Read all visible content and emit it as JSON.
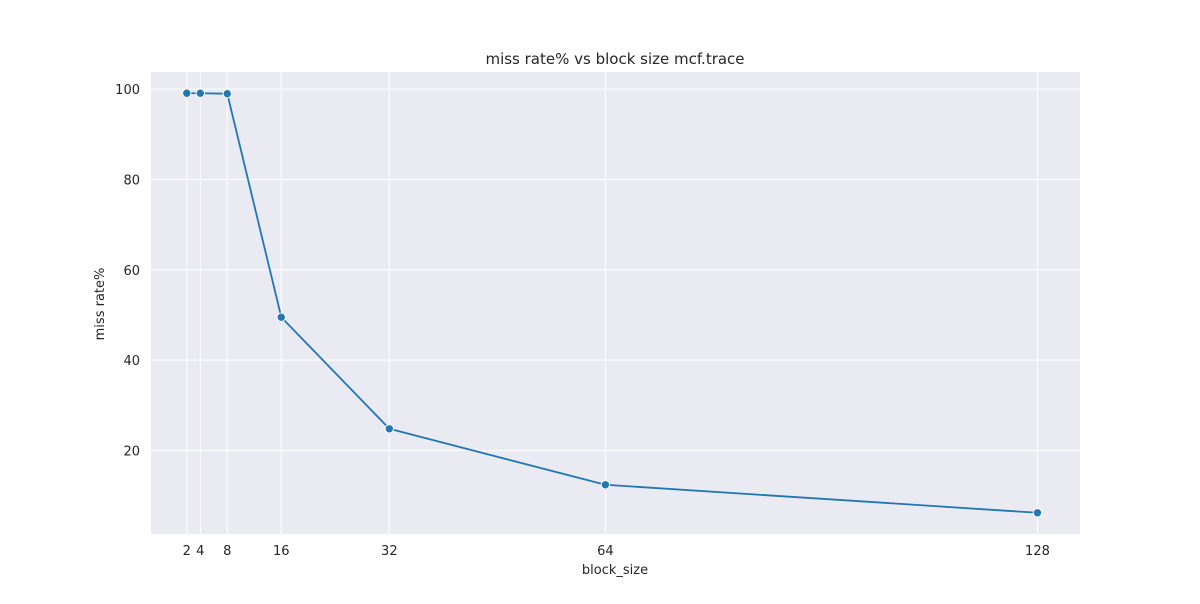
{
  "chart_data": {
    "type": "line",
    "title": "miss rate% vs block size mcf.trace",
    "xlabel": "block_size",
    "ylabel": "miss rate%",
    "x": [
      2,
      4,
      8,
      16,
      32,
      64,
      128
    ],
    "series": [
      {
        "name": "",
        "values": [
          99.1,
          99.1,
          99.0,
          49.5,
          24.8,
          12.4,
          6.2
        ],
        "color": "#1f77b4",
        "marker": "circle"
      }
    ],
    "x_ticks": [
      2,
      4,
      8,
      16,
      32,
      64,
      128
    ],
    "y_ticks": [
      20,
      40,
      60,
      80,
      100
    ],
    "xlim": [
      -3.3,
      134.3
    ],
    "ylim": [
      1.5,
      103.8
    ],
    "grid": true,
    "legend": "none",
    "style": {
      "plot_background": "#eaeaf2",
      "grid_color": "#ffffff"
    }
  }
}
